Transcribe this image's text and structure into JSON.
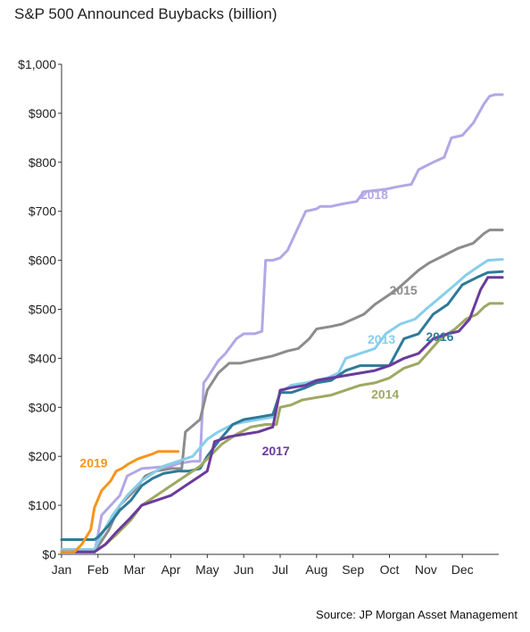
{
  "chart_data": {
    "type": "line",
    "title": "S&P 500 Announced Buybacks (billion)",
    "source": "Source: JP Morgan Asset Management",
    "xlabel": "",
    "ylabel": "",
    "x_unit": "months since Jan 1",
    "xlim": [
      0,
      12
    ],
    "ylim": [
      0,
      1000
    ],
    "categories": [
      "Jan",
      "Feb",
      "Mar",
      "Apr",
      "May",
      "Jun",
      "Jul",
      "Aug",
      "Sep",
      "Oct",
      "Nov",
      "Dec"
    ],
    "yticks": [
      0,
      100,
      200,
      300,
      400,
      500,
      600,
      700,
      800,
      900,
      1000
    ],
    "ytick_labels": [
      "$0",
      "$100",
      "$200",
      "$300",
      "$400",
      "$500",
      "$600",
      "$700",
      "$800",
      "$900",
      "$1,000"
    ],
    "grid": false,
    "legend": "inline labels",
    "series": [
      {
        "name": "2018",
        "color": "#b3a7e6",
        "label_at": [
          8.2,
          725
        ],
        "x": [
          0,
          0.9,
          1.0,
          1.1,
          1.6,
          1.8,
          2.2,
          3.0,
          3.2,
          3.6,
          3.8,
          3.9,
          4.0,
          4.3,
          4.5,
          4.8,
          5.0,
          5.3,
          5.5,
          5.6,
          5.8,
          6.0,
          6.2,
          6.7,
          7.0,
          7.1,
          7.4,
          7.7,
          8.1,
          8.3,
          8.9,
          9.2,
          9.6,
          9.8,
          10.2,
          10.5,
          10.7,
          11.0,
          11.3,
          11.6,
          11.75,
          11.9,
          12.1
        ],
        "values": [
          3,
          3,
          40,
          80,
          120,
          160,
          175,
          180,
          185,
          190,
          190,
          350,
          360,
          395,
          410,
          440,
          450,
          450,
          455,
          600,
          600,
          605,
          620,
          700,
          705,
          710,
          710,
          715,
          720,
          740,
          745,
          750,
          755,
          785,
          800,
          810,
          850,
          855,
          880,
          920,
          935,
          938,
          938
        ]
      },
      {
        "name": "2015",
        "color": "#8c8c8c",
        "label_at": [
          9.0,
          530
        ],
        "x": [
          0,
          0.9,
          1.3,
          1.6,
          2.0,
          2.3,
          2.6,
          3.0,
          3.3,
          3.4,
          3.8,
          4.0,
          4.3,
          4.6,
          4.9,
          5.2,
          5.5,
          5.8,
          6.0,
          6.2,
          6.5,
          6.8,
          7.0,
          7.4,
          7.7,
          8.0,
          8.3,
          8.6,
          8.9,
          9.2,
          9.5,
          9.8,
          10.1,
          10.5,
          10.9,
          11.3,
          11.6,
          11.75,
          12.1
        ],
        "values": [
          5,
          5,
          50,
          100,
          130,
          160,
          170,
          175,
          175,
          250,
          275,
          335,
          370,
          390,
          390,
          395,
          400,
          405,
          410,
          415,
          420,
          440,
          460,
          465,
          470,
          480,
          490,
          510,
          525,
          540,
          560,
          580,
          595,
          610,
          625,
          635,
          655,
          662,
          662
        ]
      },
      {
        "name": "2013",
        "color": "#87ceeb",
        "label_at": [
          8.4,
          430
        ],
        "x": [
          0,
          0.9,
          1.1,
          1.4,
          1.8,
          2.2,
          2.5,
          2.8,
          3.2,
          3.6,
          4.0,
          4.3,
          4.7,
          5.0,
          5.4,
          5.8,
          6.0,
          6.3,
          6.7,
          7.0,
          7.3,
          7.6,
          7.8,
          8.2,
          8.6,
          8.9,
          9.3,
          9.7,
          10.0,
          10.4,
          10.8,
          11.1,
          11.4,
          11.7,
          12.1
        ],
        "values": [
          10,
          10,
          40,
          80,
          120,
          150,
          165,
          180,
          190,
          200,
          235,
          250,
          265,
          270,
          275,
          280,
          330,
          345,
          350,
          355,
          360,
          370,
          400,
          410,
          420,
          450,
          470,
          480,
          500,
          525,
          550,
          570,
          585,
          600,
          602
        ]
      },
      {
        "name": "2016",
        "color": "#2f7a98",
        "label_at": [
          10.0,
          435
        ],
        "x": [
          0,
          0.9,
          1.0,
          1.3,
          1.6,
          1.9,
          2.2,
          2.5,
          2.8,
          3.2,
          3.5,
          3.8,
          4.0,
          4.3,
          4.7,
          5.0,
          5.4,
          5.8,
          6.0,
          6.3,
          6.7,
          7.0,
          7.4,
          7.8,
          8.2,
          8.6,
          9.0,
          9.4,
          9.8,
          10.2,
          10.6,
          11.0,
          11.4,
          11.7,
          12.1
        ],
        "values": [
          30,
          30,
          35,
          60,
          90,
          110,
          140,
          155,
          165,
          170,
          170,
          175,
          200,
          230,
          265,
          275,
          280,
          285,
          330,
          330,
          340,
          350,
          355,
          375,
          385,
          385,
          385,
          440,
          450,
          490,
          510,
          550,
          565,
          575,
          577
        ]
      },
      {
        "name": "2014",
        "color": "#9fa862",
        "label_at": [
          8.5,
          318
        ],
        "x": [
          0,
          0.9,
          1.2,
          1.5,
          1.9,
          2.2,
          2.6,
          3.0,
          3.4,
          3.8,
          4.0,
          4.4,
          4.8,
          5.2,
          5.6,
          5.9,
          6.0,
          6.3,
          6.6,
          7.0,
          7.4,
          7.8,
          8.2,
          8.6,
          9.0,
          9.4,
          9.8,
          10.1,
          10.4,
          10.8,
          11.1,
          11.4,
          11.6,
          11.75,
          12.1
        ],
        "values": [
          5,
          5,
          20,
          40,
          70,
          100,
          120,
          140,
          160,
          180,
          195,
          225,
          245,
          260,
          265,
          265,
          300,
          305,
          315,
          320,
          325,
          335,
          345,
          350,
          360,
          380,
          390,
          415,
          440,
          460,
          480,
          490,
          505,
          512,
          512
        ]
      },
      {
        "name": "2017",
        "color": "#6a3b9c",
        "label_at": [
          5.5,
          202
        ],
        "x": [
          0,
          0.9,
          1.2,
          1.5,
          1.9,
          2.2,
          2.6,
          3.0,
          3.4,
          3.8,
          4.0,
          4.2,
          4.6,
          5.0,
          5.4,
          5.8,
          6.0,
          6.3,
          6.7,
          7.0,
          7.4,
          7.8,
          8.2,
          8.6,
          9.0,
          9.4,
          9.8,
          10.2,
          10.6,
          10.9,
          11.2,
          11.5,
          11.7,
          12.1
        ],
        "values": [
          5,
          5,
          20,
          45,
          75,
          100,
          110,
          120,
          140,
          160,
          170,
          230,
          240,
          245,
          250,
          260,
          335,
          340,
          345,
          355,
          360,
          365,
          370,
          375,
          385,
          400,
          410,
          440,
          450,
          455,
          480,
          540,
          565,
          565
        ]
      },
      {
        "name": "2019",
        "color": "#f7941d",
        "label_at": [
          0.5,
          178
        ],
        "x": [
          0,
          0.35,
          0.55,
          0.8,
          0.9,
          1.1,
          1.35,
          1.5,
          1.65,
          1.85,
          2.1,
          2.3,
          2.5,
          2.65,
          2.8,
          3.1,
          3.2
        ],
        "values": [
          5,
          5,
          20,
          50,
          95,
          130,
          150,
          170,
          175,
          185,
          195,
          200,
          205,
          210,
          210,
          210,
          210
        ]
      }
    ]
  }
}
